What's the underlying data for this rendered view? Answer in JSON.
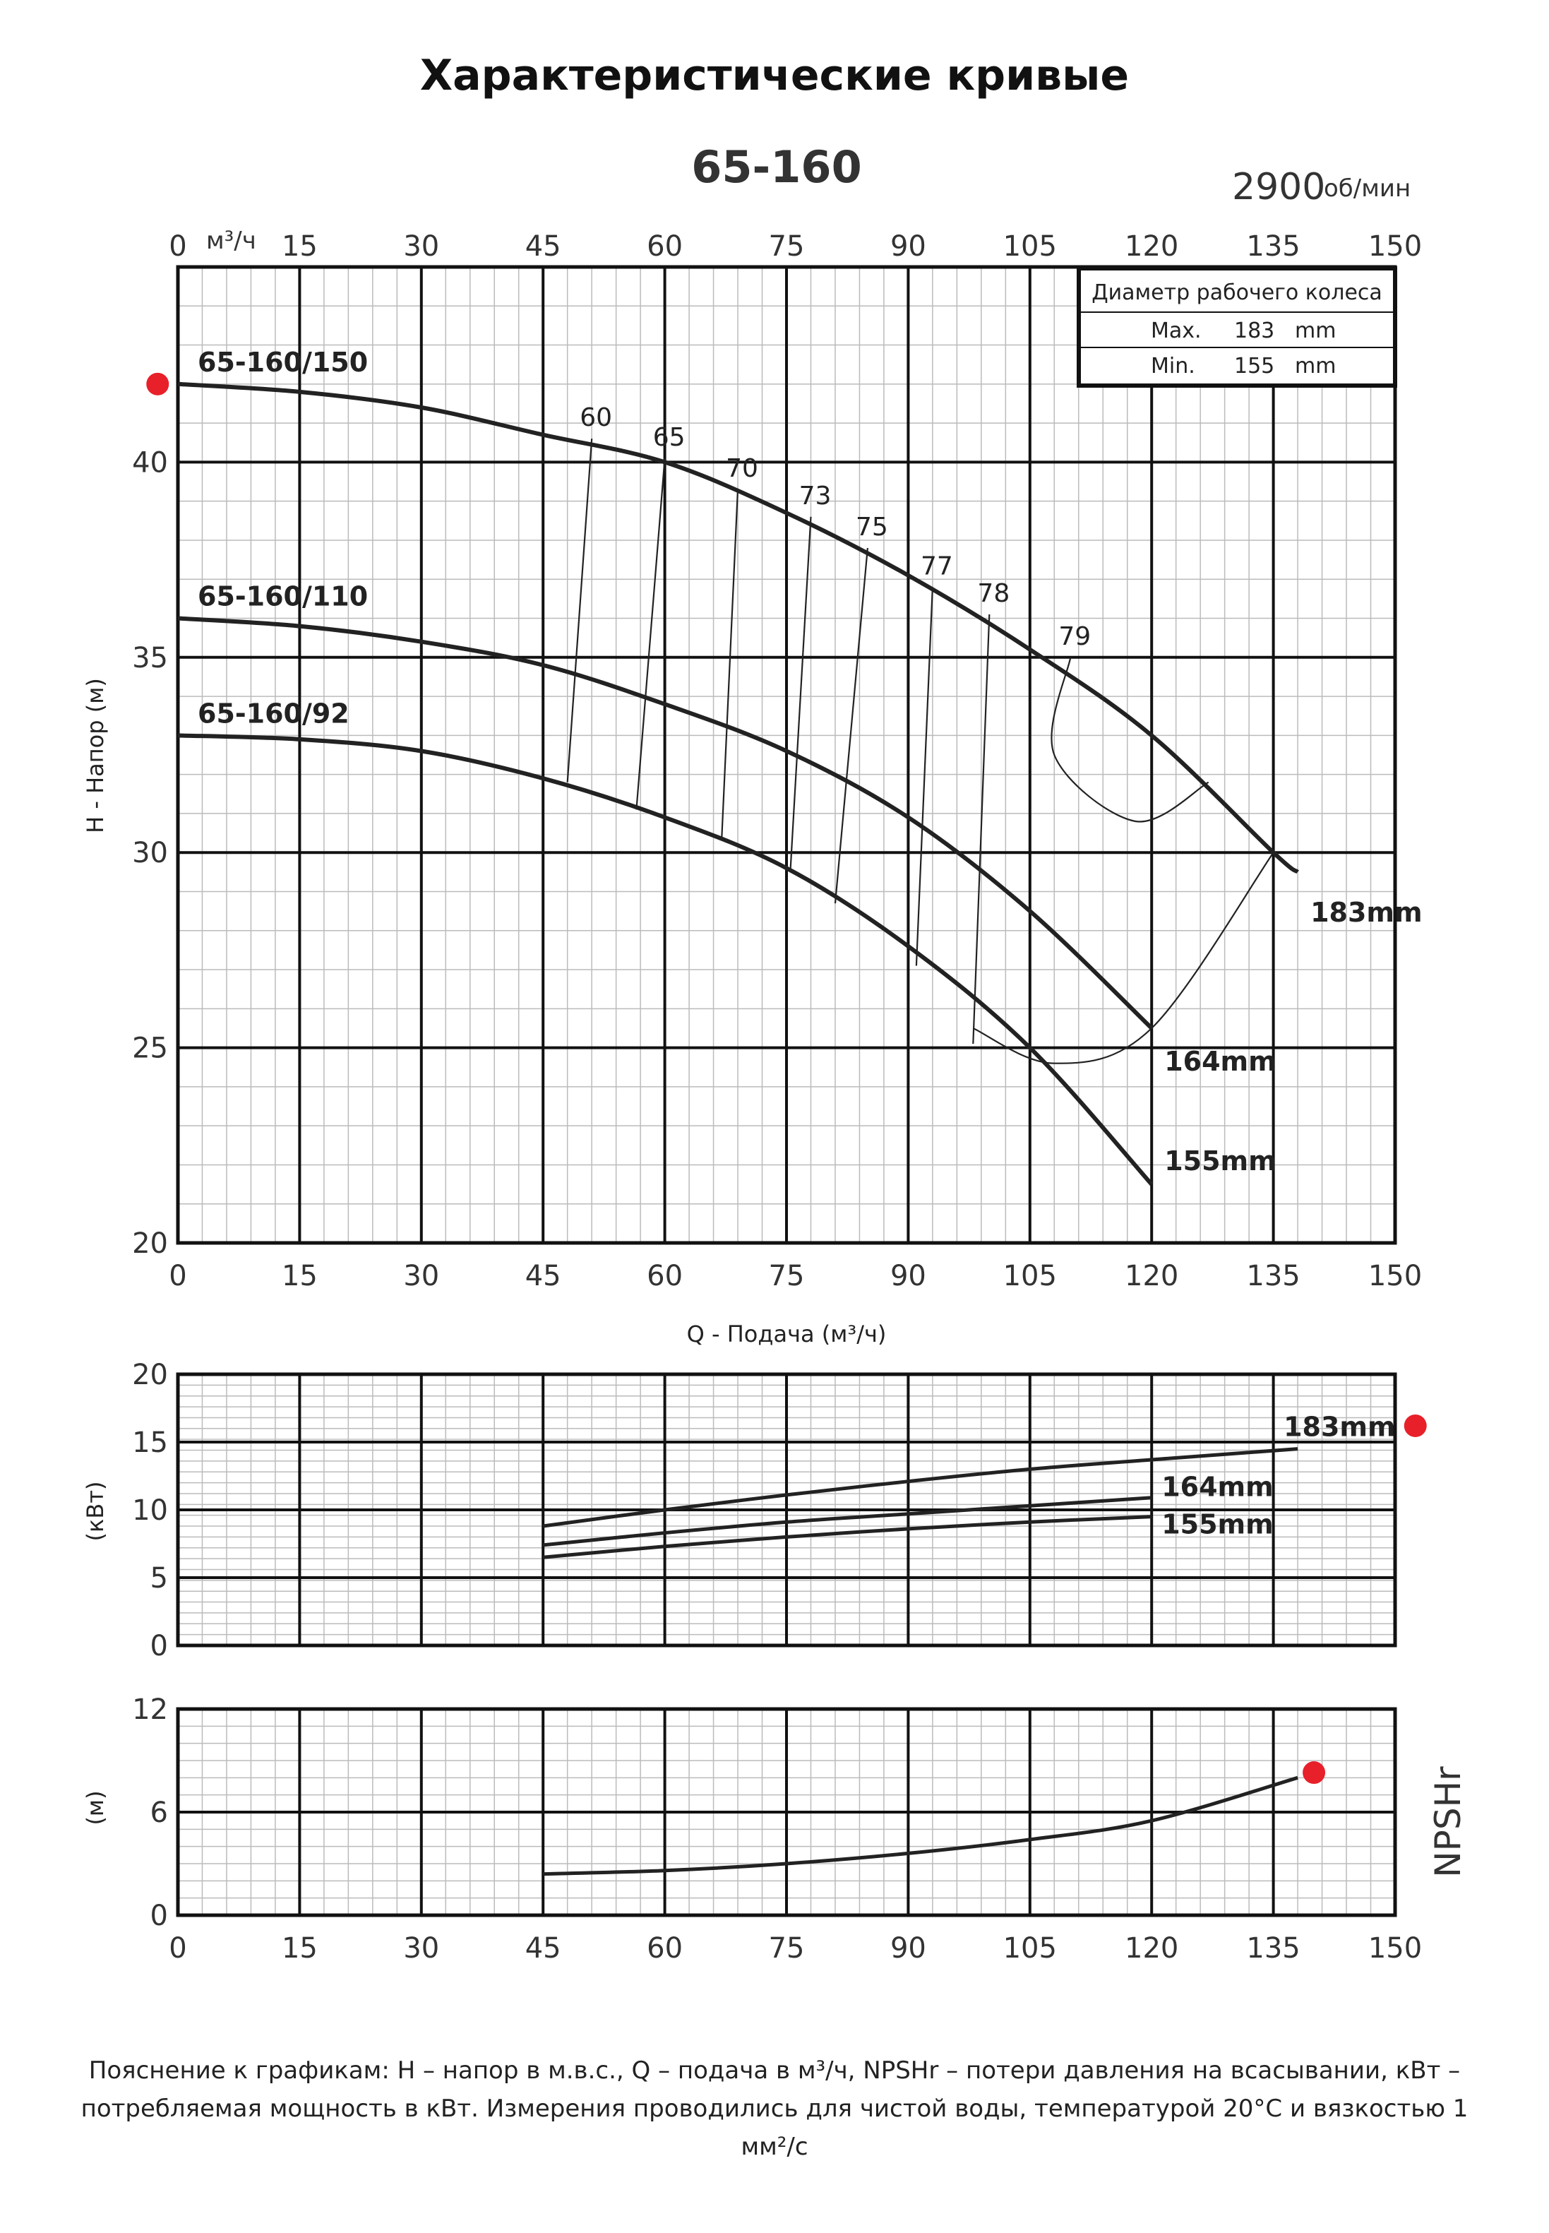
{
  "title": "Характеристические кривые",
  "caption": "Пояснение к графикам: H – напор в м.в.с., Q – подача в м³/ч, NPSHr – потери давления на всасывании, кВт – потребляемая мощность в кВт. Измерения проводились для чистой воды, температурой 20°С и вязкостью 1 мм²/с",
  "model": "65-160",
  "speed": {
    "value": "2900",
    "unit": "об/мин"
  },
  "top_axis_unit": "м³/ч",
  "colors": {
    "grid_major": "#111111",
    "grid_minor": "#bbbbbb",
    "curve": "#222222",
    "marker": "#e8202a"
  },
  "chart_data": [
    {
      "type": "line",
      "name": "head",
      "xlabel": "Q - Подача (м³/ч)",
      "ylabel": "H - Напор (м)",
      "xlim": [
        0,
        150
      ],
      "ylim": [
        20,
        45
      ],
      "xticks": [
        0,
        15,
        30,
        45,
        60,
        75,
        90,
        105,
        120,
        135,
        150
      ],
      "yticks": [
        20,
        25,
        30,
        35,
        40
      ],
      "grid": true,
      "legend": {
        "title": "Диаметр рабочего колеса",
        "rows": [
          {
            "label": "Max.",
            "value": "183",
            "unit": "mm"
          },
          {
            "label": "Min.",
            "value": "155",
            "unit": "mm"
          }
        ],
        "position": "top-right"
      },
      "series": [
        {
          "name": "65-160/150",
          "end_label": "183mm",
          "x": [
            0,
            15,
            30,
            45,
            60,
            75,
            90,
            105,
            120,
            135,
            138
          ],
          "y": [
            42,
            41.8,
            41.4,
            40.7,
            40.0,
            38.7,
            37.1,
            35.2,
            33.0,
            30.0,
            29.5
          ]
        },
        {
          "name": "65-160/110",
          "end_label": "164mm",
          "x": [
            0,
            15,
            30,
            45,
            60,
            75,
            90,
            105,
            120
          ],
          "y": [
            36,
            35.8,
            35.4,
            34.8,
            33.8,
            32.6,
            30.9,
            28.5,
            25.5
          ]
        },
        {
          "name": "65-160/92",
          "end_label": "155mm",
          "x": [
            0,
            15,
            30,
            45,
            60,
            75,
            90,
            105,
            120
          ],
          "y": [
            33,
            32.9,
            32.6,
            31.9,
            30.9,
            29.6,
            27.6,
            25.0,
            21.5
          ]
        }
      ],
      "efficiency": [
        {
          "label": "60",
          "x": [
            51,
            48
          ],
          "y": [
            40.6,
            31.8
          ]
        },
        {
          "label": "65",
          "x": [
            60,
            56.5
          ],
          "y": [
            40.1,
            31.1
          ]
        },
        {
          "label": "70",
          "x": [
            69,
            67
          ],
          "y": [
            39.3,
            30.3
          ]
        },
        {
          "label": "73",
          "x": [
            78,
            75.5
          ],
          "y": [
            38.6,
            29.6
          ]
        },
        {
          "label": "75",
          "x": [
            85,
            81
          ],
          "y": [
            37.8,
            28.7
          ]
        },
        {
          "label": "77",
          "x": [
            93,
            91
          ],
          "y": [
            36.8,
            27.1
          ]
        },
        {
          "label": "78",
          "x": [
            100,
            98
          ],
          "y": [
            36.1,
            25.1
          ]
        },
        {
          "label": "79",
          "x": [
            110,
            108,
            118,
            127
          ],
          "y": [
            35.0,
            32.5,
            30.8,
            31.8
          ]
        }
      ],
      "best_efficiency_markers": [
        {
          "x": [
            98,
            108,
            120,
            135
          ],
          "y": [
            25.5,
            24.6,
            25.5,
            30.0
          ]
        }
      ],
      "highlight_marker": {
        "x": -2.5,
        "y": 42.0
      }
    },
    {
      "type": "line",
      "name": "power",
      "ylabel": "(кВт)",
      "xlim": [
        0,
        150
      ],
      "ylim": [
        0,
        20
      ],
      "yticks": [
        0,
        5,
        10,
        15,
        20
      ],
      "grid": true,
      "series": [
        {
          "name": "183mm",
          "x": [
            45,
            60,
            75,
            90,
            105,
            120,
            138
          ],
          "y": [
            8.8,
            10.0,
            11.1,
            12.1,
            13.0,
            13.7,
            14.5
          ]
        },
        {
          "name": "164mm",
          "x": [
            45,
            60,
            75,
            90,
            105,
            120
          ],
          "y": [
            7.4,
            8.3,
            9.1,
            9.7,
            10.3,
            10.9
          ]
        },
        {
          "name": "155mm",
          "x": [
            45,
            60,
            75,
            90,
            105,
            120
          ],
          "y": [
            6.5,
            7.3,
            8.0,
            8.6,
            9.1,
            9.5
          ]
        }
      ],
      "highlight_marker": {
        "x": 152.5,
        "y": 16.2
      }
    },
    {
      "type": "line",
      "name": "npsh",
      "ylabel": "(м)",
      "side_label": "NPSHr",
      "xlim": [
        0,
        150
      ],
      "ylim": [
        0,
        12
      ],
      "yticks": [
        0,
        6,
        12
      ],
      "grid": true,
      "series": [
        {
          "name": "NPSHr",
          "x": [
            45,
            60,
            75,
            90,
            105,
            120,
            138
          ],
          "y": [
            2.4,
            2.6,
            3.0,
            3.6,
            4.4,
            5.5,
            8.0
          ]
        }
      ],
      "highlight_marker": {
        "x": 140,
        "y": 8.3
      }
    }
  ]
}
